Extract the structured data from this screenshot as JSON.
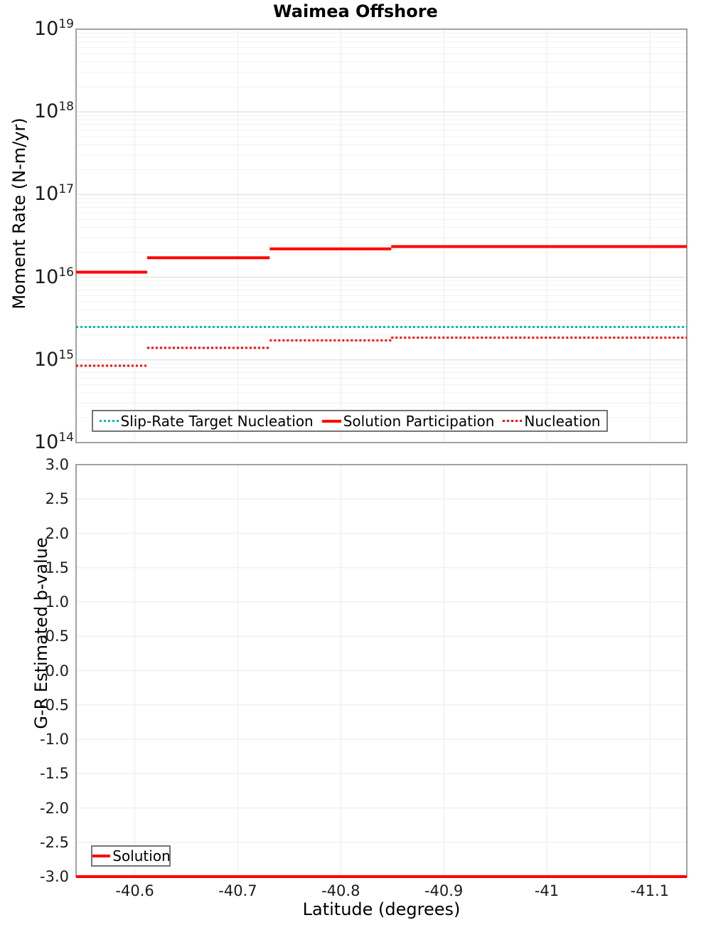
{
  "figure": {
    "title": "Waimea Offshore"
  },
  "colors": {
    "solution_red": "#fe0000",
    "slip_rate_teal": "#00b7ba",
    "grid_minor": "#f0f0f0",
    "grid_major": "#e3e3e3",
    "axis_border": "#a2a2a2",
    "legend_border": "#757575"
  },
  "chart_data": [
    {
      "type": "line",
      "title": "Waimea Offshore",
      "ylabel": "Moment Rate (N-m/yr)",
      "yscale": "log",
      "ylim": [
        100000000000000.0,
        1e+19
      ],
      "ytick_exponents": [
        "19",
        "18",
        "17",
        "16",
        "15",
        "14"
      ],
      "xlim": [
        -40.543,
        -41.136
      ],
      "x_inverted": true,
      "grid": true,
      "legend_position": "inside-bottom-left",
      "series": [
        {
          "name": "Slip-Rate Target Nucleation",
          "color": "#00b7ba",
          "style": "dotted",
          "segments": [
            [
              -40.543,
              -41.136,
              2500000000000000.0
            ]
          ]
        },
        {
          "name": "Solution Participation",
          "color": "#fe0000",
          "style": "solid",
          "segments": [
            [
              -40.543,
              -40.612,
              1.15e+16
            ],
            [
              -40.612,
              -40.731,
              1.72e+16
            ],
            [
              -40.731,
              -40.849,
              2.2e+16
            ],
            [
              -40.849,
              -41.136,
              2.35e+16
            ]
          ]
        },
        {
          "name": "Nucleation",
          "color": "#fe0000",
          "style": "dotted",
          "segments": [
            [
              -40.543,
              -40.612,
              850000000000000.0
            ],
            [
              -40.612,
              -40.731,
              1400000000000000.0
            ],
            [
              -40.731,
              -40.849,
              1720000000000000.0
            ],
            [
              -40.849,
              -41.136,
              1860000000000000.0
            ]
          ]
        }
      ]
    },
    {
      "type": "line",
      "ylabel": "G-R Estimated b-value",
      "xlabel": "Latitude (degrees)",
      "yscale": "linear",
      "ylim": [
        -3.0,
        3.0
      ],
      "yticks": [
        {
          "label": "3.0",
          "value": 3.0
        },
        {
          "label": "2.5",
          "value": 2.5
        },
        {
          "label": "2.0",
          "value": 2.0
        },
        {
          "label": "1.5",
          "value": 1.5
        },
        {
          "label": "1.0",
          "value": 1.0
        },
        {
          "label": "0.5",
          "value": 0.5
        },
        {
          "label": "0.0",
          "value": 0.0
        },
        {
          "label": "-0.5",
          "value": -0.5
        },
        {
          "label": "-1.0",
          "value": -1.0
        },
        {
          "label": "-1.5",
          "value": -1.5
        },
        {
          "label": "-2.0",
          "value": -2.0
        },
        {
          "label": "-2.5",
          "value": -2.5
        },
        {
          "label": "-3.0",
          "value": -3.0
        }
      ],
      "xticks": [
        {
          "label": "-40.6",
          "value": -40.6
        },
        {
          "label": "-40.7",
          "value": -40.7
        },
        {
          "label": "-40.8",
          "value": -40.8
        },
        {
          "label": "-40.9",
          "value": -40.9
        },
        {
          "label": "-41",
          "value": -41.0
        },
        {
          "label": "-41.1",
          "value": -41.1
        }
      ],
      "xlim": [
        -40.543,
        -41.136
      ],
      "x_inverted": true,
      "grid": true,
      "legend_position": "inside-bottom-left",
      "series": [
        {
          "name": "Solution",
          "color": "#fe0000",
          "style": "solid",
          "segments": [
            [
              -40.543,
              -41.136,
              -3.0
            ]
          ]
        }
      ]
    }
  ]
}
